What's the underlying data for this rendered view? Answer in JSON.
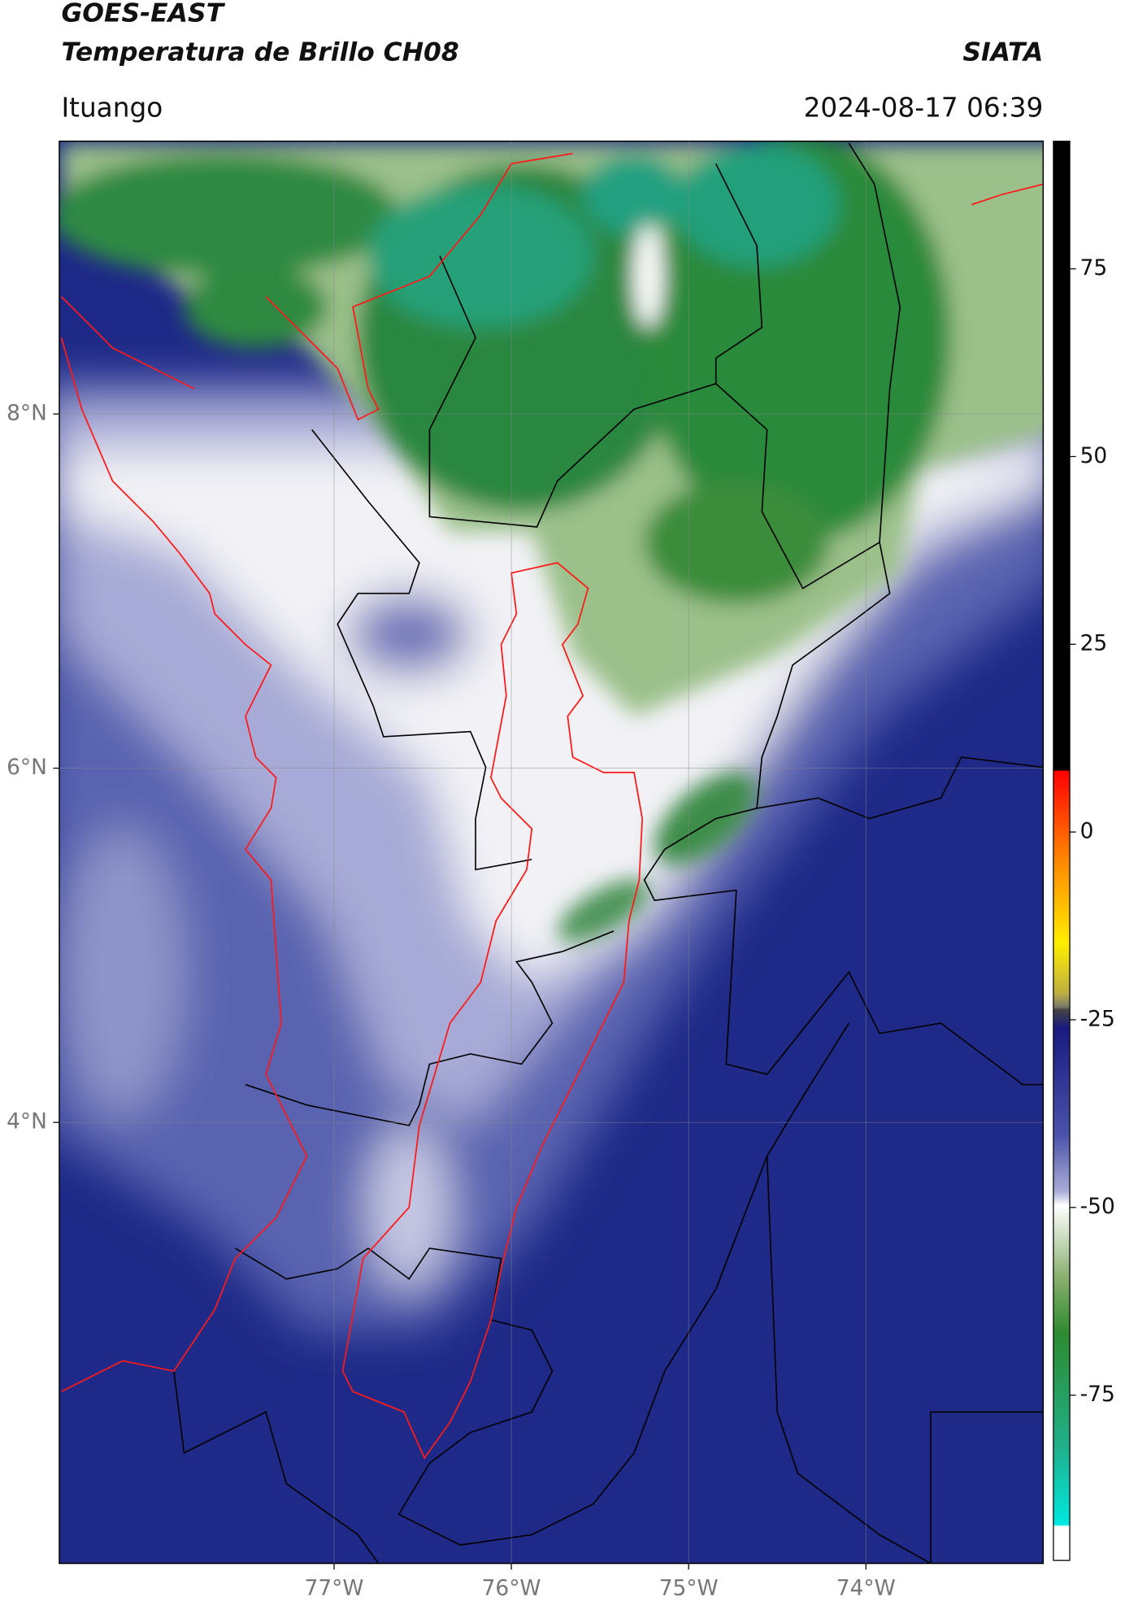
{
  "header": {
    "line1": "GOES-EAST",
    "line2": "Temperatura de Brillo CH08",
    "source": "SIATA",
    "place": "Ituango",
    "timestamp": "2024-08-17 06:39"
  },
  "map": {
    "xlim": [
      -78.55,
      -73
    ],
    "ylim": [
      1.51,
      9.54
    ],
    "xticks": [
      {
        "value": -77,
        "label": "77°W"
      },
      {
        "value": -76,
        "label": "76°W"
      },
      {
        "value": -75,
        "label": "75°W"
      },
      {
        "value": -74,
        "label": "74°W"
      }
    ],
    "yticks": [
      {
        "value": 4,
        "label": "4°N"
      },
      {
        "value": 6,
        "label": "6°N"
      },
      {
        "value": 8,
        "label": "8°N"
      }
    ]
  },
  "colorbar": {
    "ylim": [
      -97,
      92
    ],
    "yticks": [
      75,
      50,
      25,
      0,
      -25,
      -50,
      -75
    ]
  }
}
